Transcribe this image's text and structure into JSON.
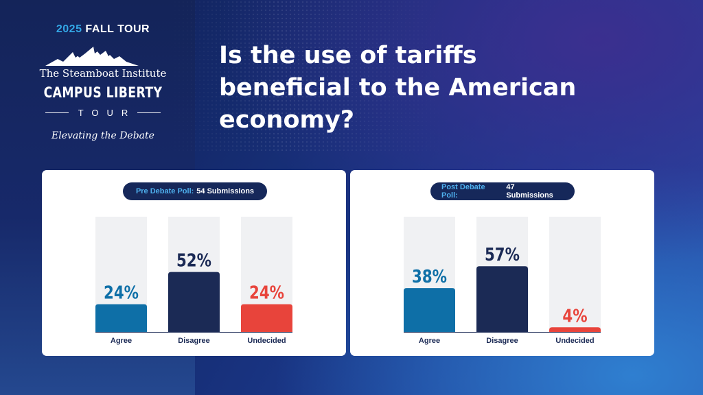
{
  "branding": {
    "tour_year": "2025",
    "tour_season": "FALL TOUR",
    "institute": "The Steamboat Institute",
    "program": "CAMPUS LIBERTY",
    "tour_word": "TOUR",
    "tagline": "Elevating the Debate"
  },
  "question": "Is the use of tariffs beneficial to the American economy?",
  "colors": {
    "agree": "#0e6fa7",
    "disagree": "#1b2a55",
    "undecided": "#e8443b",
    "track": "#f0f1f3"
  },
  "chart_data": [
    {
      "type": "bar",
      "title_label": "Pre Debate Poll:",
      "title_value": "54 Submissions",
      "categories": [
        "Agree",
        "Disagree",
        "Undecided"
      ],
      "values": [
        24,
        52,
        24
      ],
      "value_labels": [
        "24%",
        "52%",
        "24%"
      ],
      "ylim": [
        0,
        100
      ]
    },
    {
      "type": "bar",
      "title_label": "Post Debate Poll:",
      "title_value": "47 Submissions",
      "categories": [
        "Agree",
        "Disagree",
        "Undecided"
      ],
      "values": [
        38,
        57,
        4
      ],
      "value_labels": [
        "38%",
        "57%",
        "4%"
      ],
      "ylim": [
        0,
        100
      ]
    }
  ]
}
